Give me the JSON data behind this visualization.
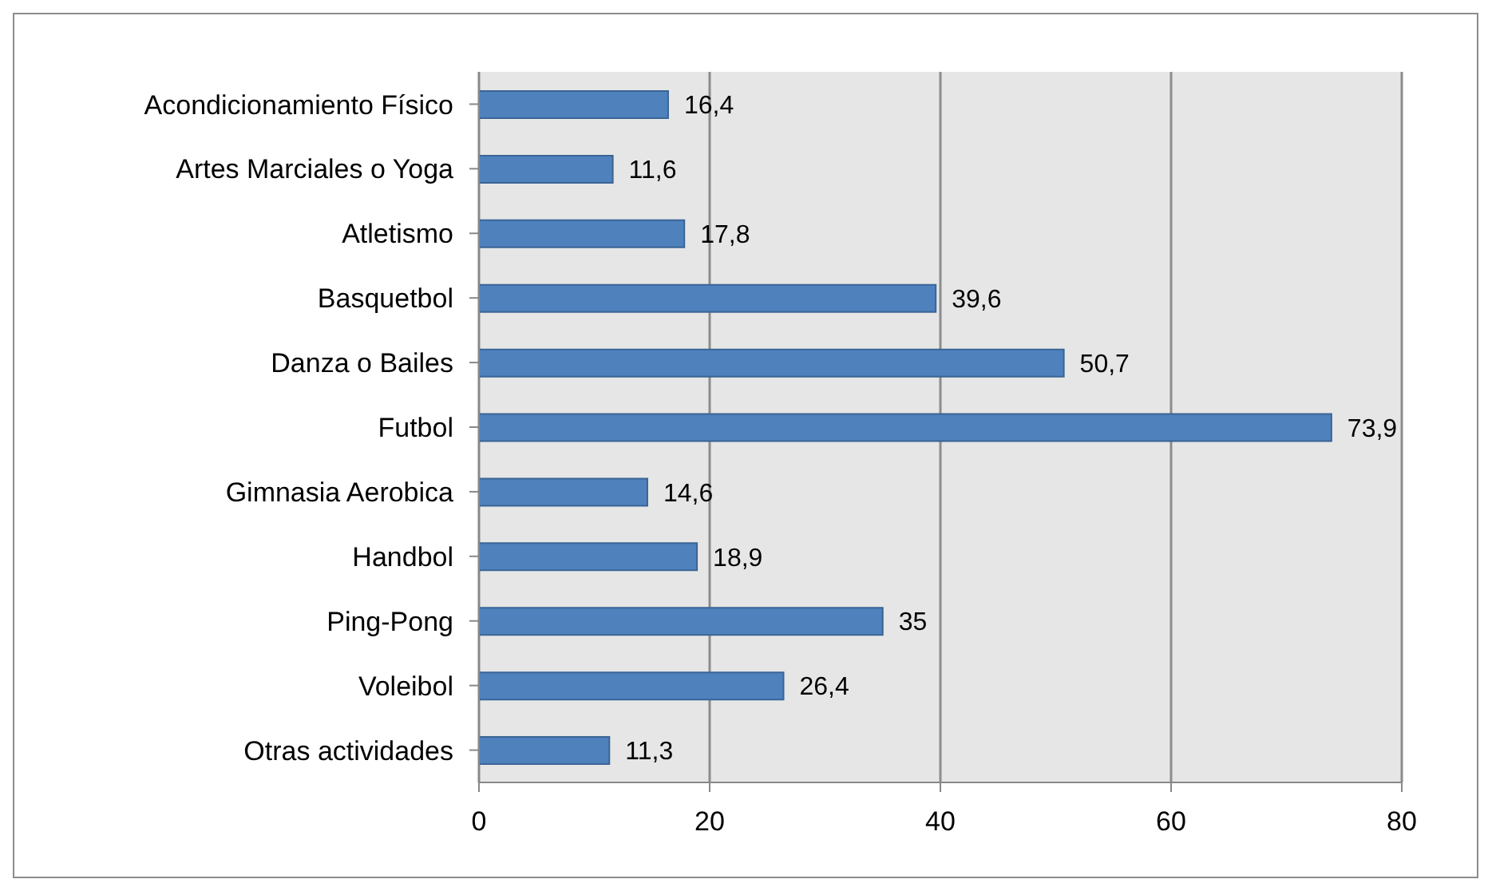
{
  "chart_data": {
    "type": "bar",
    "orientation": "horizontal",
    "categories": [
      "Acondicionamiento Físico",
      "Artes Marciales o Yoga",
      "Atletismo",
      "Basquetbol",
      "Danza o Bailes",
      "Futbol",
      "Gimnasia Aerobica",
      "Handbol",
      "Ping-Pong",
      "Voleibol",
      "Otras actividades"
    ],
    "values": [
      16.4,
      11.6,
      17.8,
      39.6,
      50.7,
      73.9,
      14.6,
      18.9,
      35,
      26.4,
      11.3
    ],
    "value_labels": [
      "16,4",
      "11,6",
      "17,8",
      "39,6",
      "50,7",
      "73,9",
      "14,6",
      "18,9",
      "35",
      "26,4",
      "11,3"
    ],
    "color": "#4f81bd",
    "xlim": [
      0,
      80
    ],
    "xticks": [
      0,
      20,
      40,
      60,
      80
    ],
    "grid": "x"
  }
}
